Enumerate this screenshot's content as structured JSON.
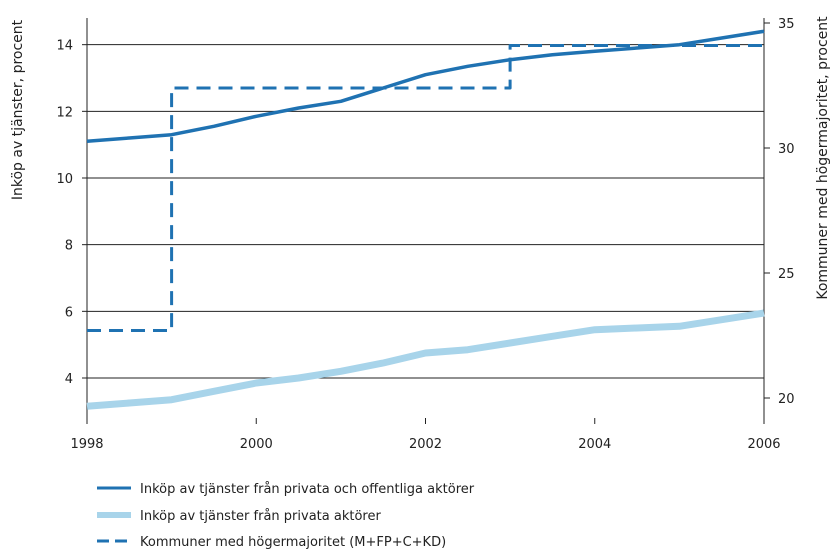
{
  "chart_data": {
    "type": "line",
    "title": "",
    "xlabel": "",
    "ylabel_left": "Inköp av tjänster, procent",
    "ylabel_right": "Kommuner med högermajoritet, procent",
    "xlim": [
      1998,
      2006
    ],
    "ylim_left": [
      2.8,
      14.8
    ],
    "ylim_right": [
      19.2,
      35.2
    ],
    "x_ticks": [
      "1998",
      "2000",
      "2002",
      "2004",
      "2006"
    ],
    "y_ticks_left": [
      "4",
      "6",
      "8",
      "10",
      "12",
      "14"
    ],
    "y_ticks_right": [
      "20",
      "25",
      "30",
      "35"
    ],
    "grid": "horizontal",
    "legend_position": "bottom",
    "series": [
      {
        "name": "Inköp av tjänster från privata och offentliga aktörer",
        "axis": "left",
        "style": "solid",
        "color": "#1f72b2",
        "x": [
          1998,
          1998.5,
          1999,
          1999.5,
          2000,
          2000.5,
          2001,
          2001.5,
          2002,
          2002.5,
          2003,
          2003.5,
          2004,
          2004.5,
          2005,
          2005.5,
          2006
        ],
        "y": [
          11.1,
          11.2,
          11.3,
          11.55,
          11.85,
          12.1,
          12.3,
          12.7,
          13.1,
          13.35,
          13.55,
          13.7,
          13.8,
          13.9,
          14.0,
          14.2,
          14.4
        ]
      },
      {
        "name": "Inköp av tjänster från privata aktörer",
        "axis": "left",
        "style": "solid-thick",
        "color": "#a8d4ea",
        "x": [
          1998,
          1998.5,
          1999,
          1999.5,
          2000,
          2000.5,
          2001,
          2001.5,
          2002,
          2002.5,
          2003,
          2003.5,
          2004,
          2004.5,
          2005,
          2005.5,
          2006
        ],
        "y": [
          3.15,
          3.25,
          3.35,
          3.6,
          3.85,
          4.0,
          4.2,
          4.45,
          4.75,
          4.85,
          5.05,
          5.25,
          5.45,
          5.5,
          5.55,
          5.75,
          5.95
        ]
      },
      {
        "name": "Kommuner med högermajoritet (M+FP+C+KD)",
        "axis": "right",
        "style": "dashed-step",
        "color": "#1f72b2",
        "x": [
          1998,
          1999,
          1999,
          2003,
          2003,
          2006
        ],
        "y": [
          22.7,
          22.7,
          32.4,
          32.4,
          34.1,
          34.1
        ]
      }
    ]
  }
}
